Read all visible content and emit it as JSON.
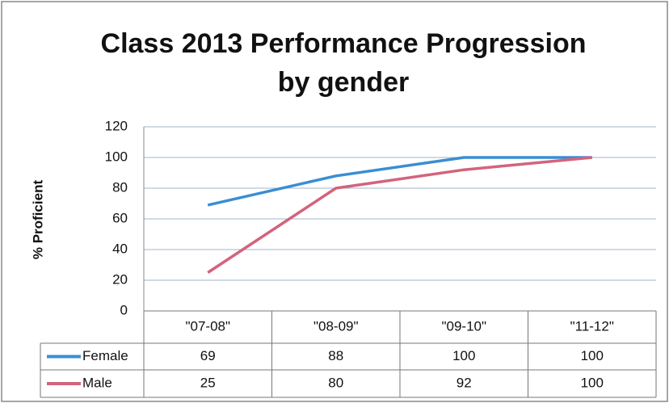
{
  "chart_data": {
    "type": "line",
    "title": "Class 2013 Performance Progression",
    "subtitle": "by gender",
    "y_label": "% Proficient",
    "categories": [
      "\"07-08\"",
      "\"08-09\"",
      "\"09-10\"",
      "\"11-12\""
    ],
    "series": [
      {
        "name": "Female",
        "color": "#3a8ed2",
        "values": [
          69,
          88,
          100,
          100
        ]
      },
      {
        "name": "Male",
        "color": "#d2647c",
        "values": [
          25,
          80,
          92,
          100
        ]
      }
    ],
    "ylim": [
      0,
      120
    ],
    "yticks": [
      0,
      20,
      40,
      60,
      80,
      100,
      120
    ],
    "grid": true,
    "data_table": true
  }
}
